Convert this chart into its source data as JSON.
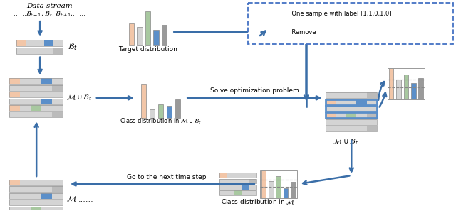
{
  "colors": {
    "salmon": "#F2C6A8",
    "light_gray": "#D4D4D4",
    "blue": "#5B8FC9",
    "green": "#A8C8A0",
    "dark_gray": "#9A9A9A",
    "arrow_blue": "#3A6EA8",
    "white": "#FFFFFF",
    "dashed_blue": "#4472C4",
    "med_gray": "#BBBBBB"
  },
  "legend_label": ": One sample with label [1,1,0,1,0]",
  "remove_label": ": Remove",
  "data_stream_text": "Data stream",
  "target_dist_label": "Target distribution",
  "class_dist_union_label": "Class distribution in $\\mathcal{M} \\cup \\mathcal{B}_t$",
  "solve_label": "Solve optimization problem",
  "class_dist_M_label": "Class distribution in $\\mathcal{M}$",
  "next_step_label": "Go to the next time step",
  "Bt_label": "$\\mathcal{B}_t$",
  "MuBt_label": "$\\mathcal{M} \\cup \\mathcal{B}_t$",
  "M_label": "$\\mathcal{M}$",
  "MuBt2_label": "$\\mathcal{M} \\cup \\mathcal{B}_t$"
}
